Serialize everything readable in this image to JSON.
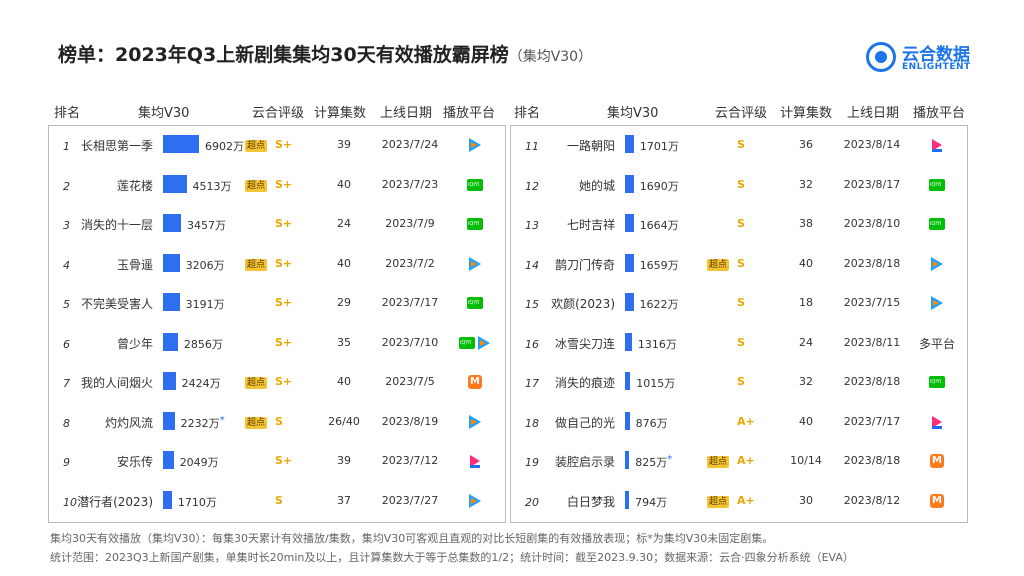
{
  "title": "榜单：2023年Q3上新剧集集均30天有效播放霸屏榜",
  "title_sub": "（集均V30）",
  "logo": {
    "cn": "云合数据",
    "en": "ENLIGHTENT"
  },
  "headers": {
    "rank": "排名",
    "v30": "集均V30",
    "grade": "云合评级",
    "eps": "计算集数",
    "date": "上线日期",
    "platform": "播放平台"
  },
  "chart_data": {
    "type": "bar",
    "unit": "万",
    "xlim": [
      0,
      6902
    ],
    "left": [
      {
        "rank": "1",
        "name": "长相思第一季",
        "value": 6902,
        "label": "6902万",
        "tag": "超点",
        "grade": "S+",
        "eps": "39",
        "date": "2023/7/24",
        "platforms": [
          "tencent"
        ]
      },
      {
        "rank": "2",
        "name": "莲花楼",
        "value": 4513,
        "label": "4513万",
        "tag": "超点",
        "grade": "S+",
        "eps": "40",
        "date": "2023/7/23",
        "platforms": [
          "iqiyi"
        ]
      },
      {
        "rank": "3",
        "name": "消失的十一层",
        "value": 3457,
        "label": "3457万",
        "tag": "",
        "grade": "S+",
        "eps": "24",
        "date": "2023/7/9",
        "platforms": [
          "iqiyi"
        ]
      },
      {
        "rank": "4",
        "name": "玉骨遥",
        "value": 3206,
        "label": "3206万",
        "tag": "超点",
        "grade": "S+",
        "eps": "40",
        "date": "2023/7/2",
        "platforms": [
          "tencent"
        ]
      },
      {
        "rank": "5",
        "name": "不完美受害人",
        "value": 3191,
        "label": "3191万",
        "tag": "",
        "grade": "S+",
        "eps": "29",
        "date": "2023/7/17",
        "platforms": [
          "iqiyi"
        ]
      },
      {
        "rank": "6",
        "name": "曾少年",
        "value": 2856,
        "label": "2856万",
        "tag": "",
        "grade": "S+",
        "eps": "35",
        "date": "2023/7/10",
        "platforms": [
          "iqiyi",
          "tencent"
        ]
      },
      {
        "rank": "7",
        "name": "我的人间烟火",
        "value": 2424,
        "label": "2424万",
        "tag": "超点",
        "grade": "S+",
        "eps": "40",
        "date": "2023/7/5",
        "platforms": [
          "mango"
        ]
      },
      {
        "rank": "8",
        "name": "灼灼风流",
        "value": 2232,
        "label": "2232万",
        "star": "*",
        "tag": "超点",
        "grade": "S",
        "eps": "26/40",
        "date": "2023/8/19",
        "platforms": [
          "tencent"
        ]
      },
      {
        "rank": "9",
        "name": "安乐传",
        "value": 2049,
        "label": "2049万",
        "tag": "",
        "grade": "S+",
        "eps": "39",
        "date": "2023/7/12",
        "platforms": [
          "youku"
        ]
      },
      {
        "rank": "10",
        "name": "潜行者(2023)",
        "value": 1710,
        "label": "1710万",
        "tag": "",
        "grade": "S",
        "eps": "37",
        "date": "2023/7/27",
        "platforms": [
          "tencent"
        ]
      }
    ],
    "right": [
      {
        "rank": "11",
        "name": "一路朝阳",
        "value": 1701,
        "label": "1701万",
        "tag": "",
        "grade": "S",
        "eps": "36",
        "date": "2023/8/14",
        "platforms": [
          "youku"
        ]
      },
      {
        "rank": "12",
        "name": "她的城",
        "value": 1690,
        "label": "1690万",
        "tag": "",
        "grade": "S",
        "eps": "32",
        "date": "2023/8/17",
        "platforms": [
          "iqiyi"
        ]
      },
      {
        "rank": "13",
        "name": "七时吉祥",
        "value": 1664,
        "label": "1664万",
        "tag": "",
        "grade": "S",
        "eps": "38",
        "date": "2023/8/10",
        "platforms": [
          "iqiyi"
        ]
      },
      {
        "rank": "14",
        "name": "鹊刀门传奇",
        "value": 1659,
        "label": "1659万",
        "tag": "超点",
        "grade": "S",
        "eps": "40",
        "date": "2023/8/18",
        "platforms": [
          "tencent"
        ]
      },
      {
        "rank": "15",
        "name": "欢颜(2023)",
        "value": 1622,
        "label": "1622万",
        "tag": "",
        "grade": "S",
        "eps": "18",
        "date": "2023/7/15",
        "platforms": [
          "tencent"
        ]
      },
      {
        "rank": "16",
        "name": "冰雪尖刀连",
        "value": 1316,
        "label": "1316万",
        "tag": "",
        "grade": "S",
        "eps": "24",
        "date": "2023/8/11",
        "platforms": [],
        "platform_text": "多平台"
      },
      {
        "rank": "17",
        "name": "消失的痕迹",
        "value": 1015,
        "label": "1015万",
        "tag": "",
        "grade": "S",
        "eps": "32",
        "date": "2023/8/18",
        "platforms": [
          "iqiyi"
        ]
      },
      {
        "rank": "18",
        "name": "做自己的光",
        "value": 876,
        "label": "876万",
        "tag": "",
        "grade": "A+",
        "eps": "40",
        "date": "2023/7/17",
        "platforms": [
          "youku"
        ]
      },
      {
        "rank": "19",
        "name": "装腔启示录",
        "value": 825,
        "label": "825万",
        "star": "*",
        "tag": "超点",
        "grade": "A+",
        "eps": "10/14",
        "date": "2023/8/18",
        "platforms": [
          "mango"
        ]
      },
      {
        "rank": "20",
        "name": "白日梦我",
        "value": 794,
        "label": "794万",
        "tag": "超点",
        "grade": "A+",
        "eps": "30",
        "date": "2023/8/12",
        "platforms": [
          "mango"
        ]
      }
    ]
  },
  "footer": {
    "line1": "集均30天有效播放（集均V30）：每集30天累计有效播放/集数，集均V30可客观且直观的对比长短剧集的有效播放表现；标*为集均V30未固定剧集。",
    "line2": "统计范围：2023Q3上新国产剧集，单集时长20min及以上，且计算集数大于等于总集数的1/2；统计时间：截至2023.9.30；数据来源：云合·四象分析系统（EVA）"
  }
}
